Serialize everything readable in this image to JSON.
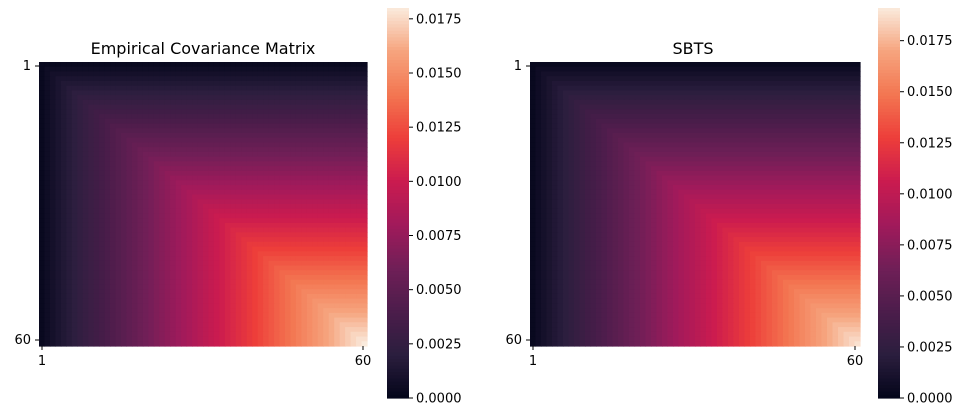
{
  "chart_data": [
    {
      "type": "heatmap",
      "title": "Empirical Covariance Matrix",
      "n": 60,
      "x_tick_labels": [
        "1",
        "60"
      ],
      "y_tick_labels": [
        "1",
        "60"
      ],
      "value_model": "cov(i,j) ≈ vmax_data * min(i,j) / 60",
      "vmax_data": 0.018,
      "colorbar": {
        "vmin": 0.0,
        "vmax": 0.018,
        "ticks": [
          "0.0000",
          "0.0025",
          "0.0050",
          "0.0075",
          "0.0100",
          "0.0125",
          "0.0150",
          "0.0175"
        ],
        "tick_values": [
          0.0,
          0.0025,
          0.005,
          0.0075,
          0.01,
          0.0125,
          0.015,
          0.0175
        ]
      },
      "colormap": "rocket"
    },
    {
      "type": "heatmap",
      "title": "SBTS",
      "n": 60,
      "x_tick_labels": [
        "1",
        "60"
      ],
      "y_tick_labels": [
        "1",
        "60"
      ],
      "value_model": "cov(i,j) ≈ vmax_data * min(i,j) / 60",
      "vmax_data": 0.0188,
      "colorbar": {
        "vmin": 0.0,
        "vmax": 0.0191,
        "ticks": [
          "0.0000",
          "0.0025",
          "0.0050",
          "0.0075",
          "0.0100",
          "0.0125",
          "0.0150",
          "0.0175"
        ],
        "tick_values": [
          0.0,
          0.0025,
          0.005,
          0.0075,
          0.01,
          0.0125,
          0.015,
          0.0175
        ]
      },
      "colormap": "rocket"
    }
  ],
  "colors": {
    "rocket_stops": [
      "#03051a",
      "#2b1e3e",
      "#4c1d4b",
      "#701f57",
      "#a11a5b",
      "#cb1b4f",
      "#ed3e3a",
      "#f37651",
      "#f6a47e",
      "#faebdd"
    ]
  }
}
